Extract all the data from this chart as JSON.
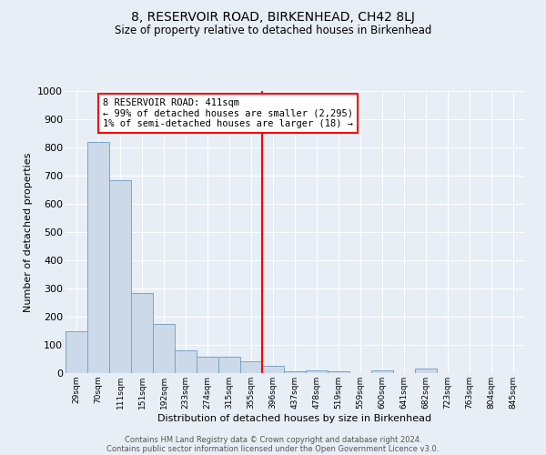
{
  "title": "8, RESERVOIR ROAD, BIRKENHEAD, CH42 8LJ",
  "subtitle": "Size of property relative to detached houses in Birkenhead",
  "xlabel": "Distribution of detached houses by size in Birkenhead",
  "ylabel": "Number of detached properties",
  "categories": [
    "29sqm",
    "70sqm",
    "111sqm",
    "151sqm",
    "192sqm",
    "233sqm",
    "274sqm",
    "315sqm",
    "355sqm",
    "396sqm",
    "437sqm",
    "478sqm",
    "519sqm",
    "559sqm",
    "600sqm",
    "641sqm",
    "682sqm",
    "723sqm",
    "763sqm",
    "804sqm",
    "845sqm"
  ],
  "values": [
    148,
    820,
    685,
    283,
    175,
    80,
    57,
    57,
    43,
    25,
    8,
    10,
    5,
    0,
    10,
    0,
    15,
    0,
    0,
    0,
    0
  ],
  "bar_color": "#ccd9e8",
  "bar_edge_color": "#7ba5c8",
  "property_line_index": 9,
  "property_line_color": "red",
  "annotation_text": "8 RESERVOIR ROAD: 411sqm\n← 99% of detached houses are smaller (2,295)\n1% of semi-detached houses are larger (18) →",
  "annotation_box_color": "white",
  "annotation_box_edge_color": "red",
  "ylim": [
    0,
    1000
  ],
  "yticks": [
    0,
    100,
    200,
    300,
    400,
    500,
    600,
    700,
    800,
    900,
    1000
  ],
  "background_color": "#e8eef5",
  "grid_color": "white",
  "footer_line1": "Contains HM Land Registry data © Crown copyright and database right 2024.",
  "footer_line2": "Contains public sector information licensed under the Open Government Licence v3.0."
}
